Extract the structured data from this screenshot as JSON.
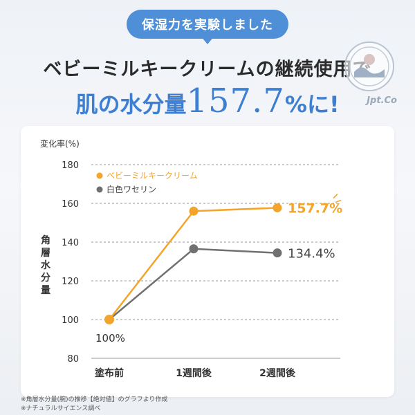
{
  "header": {
    "badge": "保湿力を実験しました",
    "headline": "ベビーミルキークリームの継続使用で",
    "subhead_pre": "肌の水分量",
    "subhead_value": "157.7",
    "subhead_post": "%に!"
  },
  "logo": {
    "text": "Jpt.Co"
  },
  "chart_data": {
    "type": "line",
    "unit_label": "変化率(%)",
    "ylabel": "角層水分量",
    "categories": [
      "塗布前",
      "1週間後",
      "2週間後"
    ],
    "ylim": [
      80,
      180
    ],
    "yticks": [
      80,
      100,
      120,
      140,
      160,
      180
    ],
    "grid": true,
    "legend_position": "top-left",
    "series": [
      {
        "name": "ベビーミルキークリーム",
        "values": [
          100,
          156,
          157.7
        ],
        "color": "#f3a42a"
      },
      {
        "name": "白色ワセリン",
        "values": [
          100,
          136.5,
          134.4
        ],
        "color": "#707070"
      }
    ],
    "annotations": {
      "start": "100%",
      "end_series_1": "157.7%",
      "end_series_2": "134.4%"
    }
  },
  "footnotes": [
    "※角層水分量(腕)の推移【絶対値】のグラフより作成",
    "※ナチュラルサイエンス調べ"
  ]
}
